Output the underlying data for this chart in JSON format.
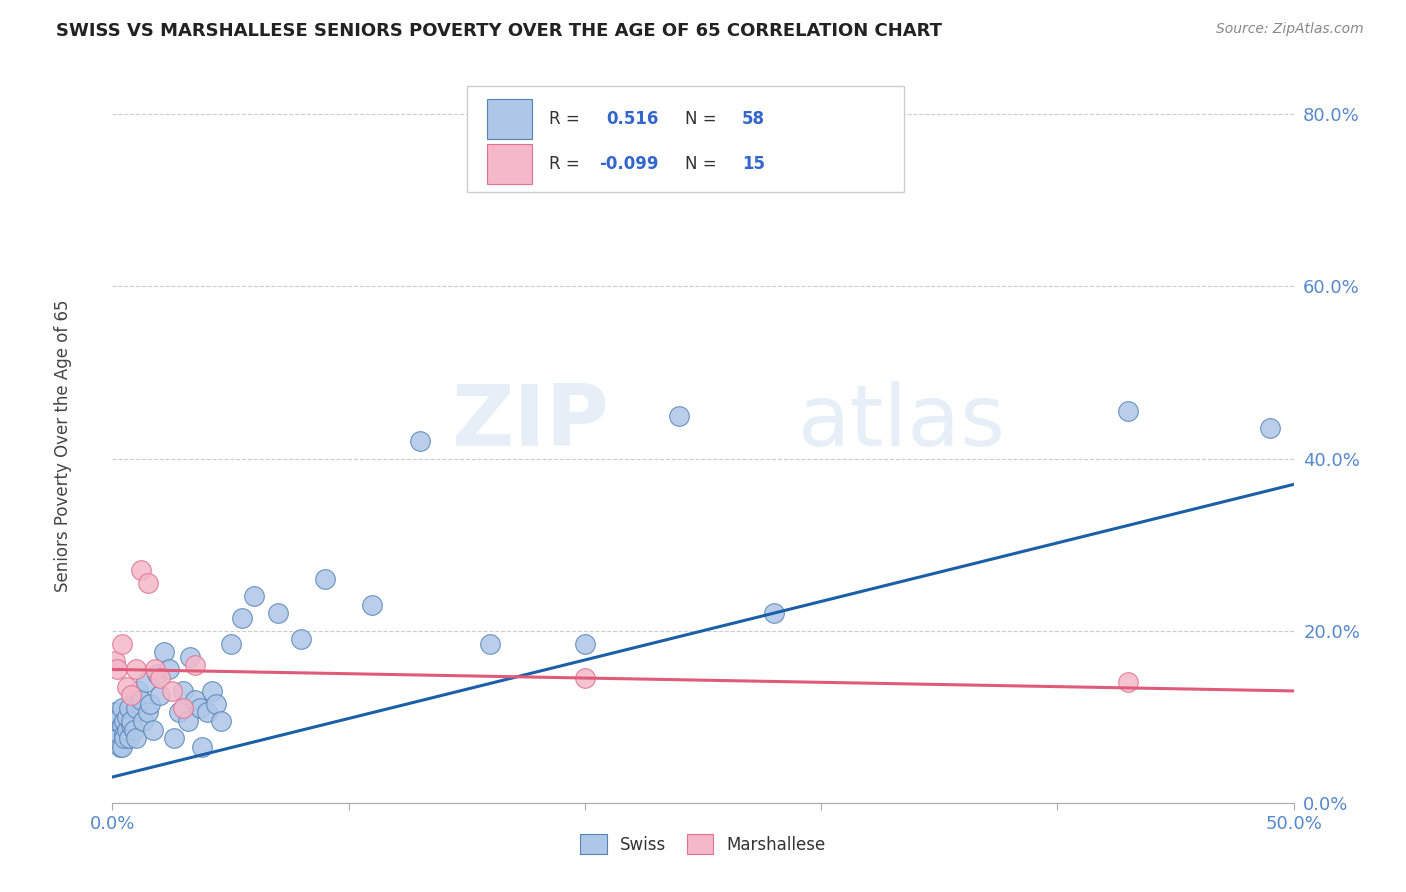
{
  "title": "SWISS VS MARSHALLESE SENIORS POVERTY OVER THE AGE OF 65 CORRELATION CHART",
  "source": "Source: ZipAtlas.com",
  "ylabel": "Seniors Poverty Over the Age of 65",
  "xlim": [
    0.0,
    0.5
  ],
  "ylim": [
    0.0,
    0.85
  ],
  "xticks": [
    0.0,
    0.1,
    0.2,
    0.3,
    0.4,
    0.5
  ],
  "xtick_labels_show": [
    "0.0%",
    "",
    "",
    "",
    "",
    "50.0%"
  ],
  "yticks": [
    0.0,
    0.2,
    0.4,
    0.6,
    0.8
  ],
  "ytick_labels": [
    "0.0%",
    "20.0%",
    "40.0%",
    "60.0%",
    "80.0%"
  ],
  "swiss_color": "#aec6e8",
  "swiss_edge_color": "#5585b5",
  "swiss_line_color": "#1a5fa8",
  "marshallese_color": "#f4b8c8",
  "marshallese_edge_color": "#e07090",
  "marshallese_line_color": "#e05a7a",
  "swiss_R": 0.516,
  "swiss_N": 58,
  "marshallese_R": -0.099,
  "marshallese_N": 15,
  "swiss_x": [
    0.001,
    0.001,
    0.002,
    0.002,
    0.003,
    0.003,
    0.004,
    0.004,
    0.004,
    0.005,
    0.005,
    0.005,
    0.006,
    0.006,
    0.007,
    0.007,
    0.008,
    0.008,
    0.009,
    0.01,
    0.01,
    0.011,
    0.012,
    0.013,
    0.014,
    0.015,
    0.016,
    0.017,
    0.019,
    0.02,
    0.022,
    0.024,
    0.026,
    0.028,
    0.03,
    0.032,
    0.033,
    0.035,
    0.037,
    0.038,
    0.04,
    0.042,
    0.044,
    0.046,
    0.05,
    0.055,
    0.06,
    0.07,
    0.08,
    0.09,
    0.11,
    0.13,
    0.16,
    0.2,
    0.24,
    0.28,
    0.43,
    0.49
  ],
  "swiss_y": [
    0.085,
    0.105,
    0.075,
    0.095,
    0.065,
    0.1,
    0.065,
    0.09,
    0.11,
    0.08,
    0.075,
    0.095,
    0.085,
    0.1,
    0.075,
    0.11,
    0.09,
    0.095,
    0.085,
    0.11,
    0.075,
    0.13,
    0.12,
    0.095,
    0.14,
    0.105,
    0.115,
    0.085,
    0.15,
    0.125,
    0.175,
    0.155,
    0.075,
    0.105,
    0.13,
    0.095,
    0.17,
    0.12,
    0.11,
    0.065,
    0.105,
    0.13,
    0.115,
    0.095,
    0.185,
    0.215,
    0.24,
    0.22,
    0.19,
    0.26,
    0.23,
    0.42,
    0.185,
    0.185,
    0.45,
    0.22,
    0.455,
    0.435
  ],
  "marshallese_x": [
    0.001,
    0.002,
    0.004,
    0.006,
    0.008,
    0.01,
    0.012,
    0.015,
    0.018,
    0.02,
    0.025,
    0.03,
    0.035,
    0.2,
    0.43
  ],
  "marshallese_y": [
    0.165,
    0.155,
    0.185,
    0.135,
    0.125,
    0.155,
    0.27,
    0.255,
    0.155,
    0.145,
    0.13,
    0.11,
    0.16,
    0.145,
    0.14
  ],
  "swiss_trend_x": [
    0.0,
    0.5
  ],
  "swiss_trend_y": [
    0.03,
    0.37
  ],
  "marshallese_trend_x": [
    0.0,
    0.5
  ],
  "marshallese_trend_y": [
    0.155,
    0.13
  ],
  "watermark_zip": "ZIP",
  "watermark_atlas": "atlas",
  "background_color": "#ffffff",
  "grid_color": "#cccccc",
  "tick_color": "#5588cc",
  "legend_label_color": "#333333",
  "legend_value_color": "#3366cc"
}
